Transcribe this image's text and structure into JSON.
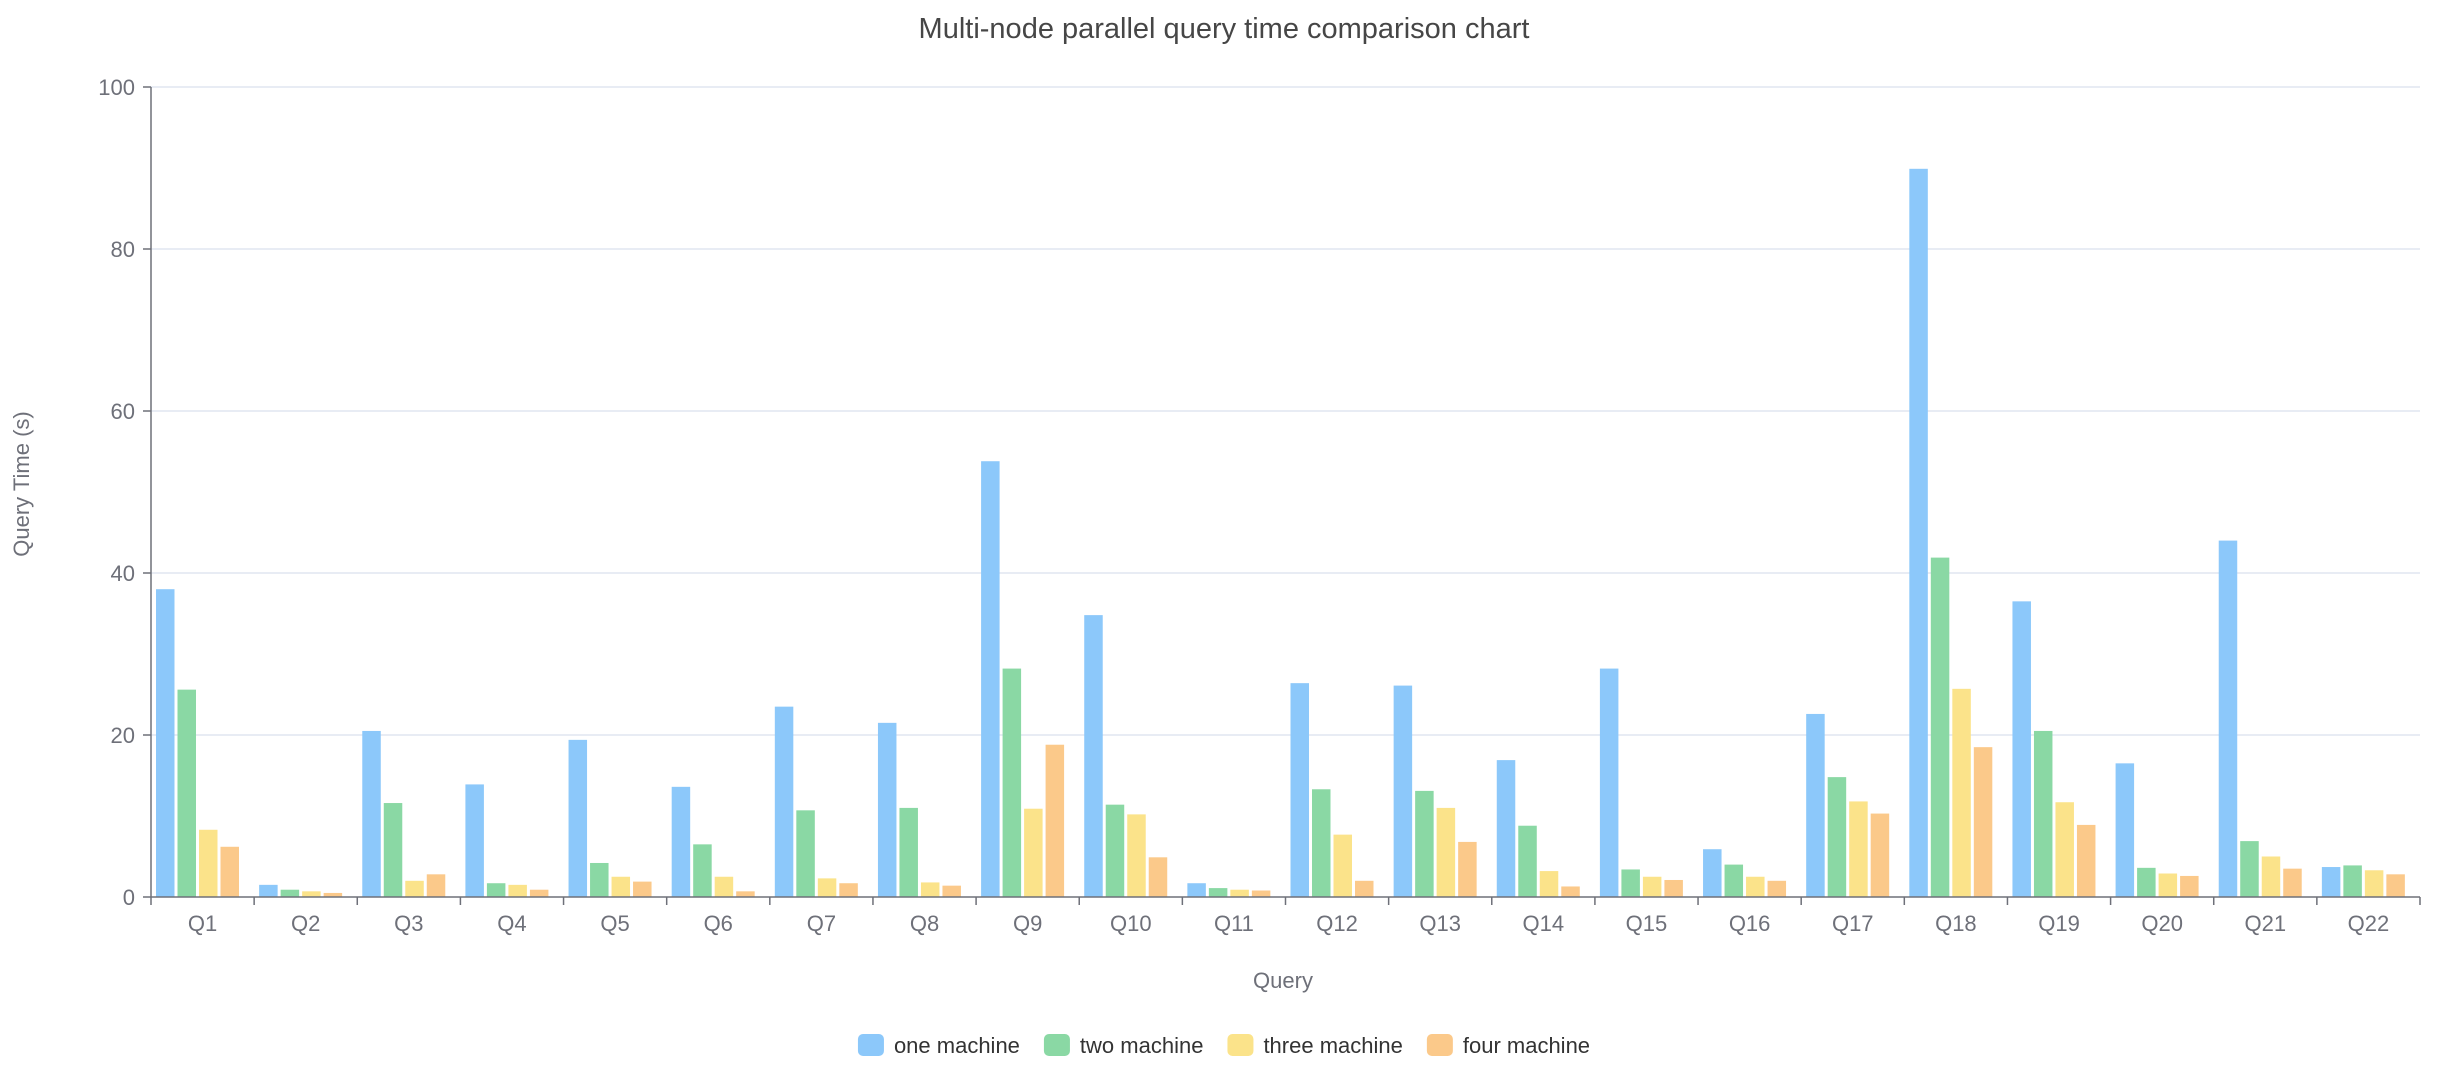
{
  "chart_data": {
    "type": "bar",
    "title": "Multi-node parallel query time comparison chart",
    "xlabel": "Query",
    "ylabel": "Query Time (s)",
    "ylim": [
      0,
      100
    ],
    "yticks": [
      0,
      20,
      40,
      60,
      80,
      100
    ],
    "grid": true,
    "legend_position": "bottom-center",
    "categories": [
      "Q1",
      "Q2",
      "Q3",
      "Q4",
      "Q5",
      "Q6",
      "Q7",
      "Q8",
      "Q9",
      "Q10",
      "Q11",
      "Q12",
      "Q13",
      "Q14",
      "Q15",
      "Q16",
      "Q17",
      "Q18",
      "Q19",
      "Q20",
      "Q21",
      "Q22"
    ],
    "series": [
      {
        "name": "one machine",
        "color": "#8cc8fa",
        "values": [
          38.0,
          1.5,
          20.5,
          13.9,
          19.4,
          13.6,
          23.5,
          21.5,
          53.8,
          34.8,
          1.7,
          26.4,
          26.1,
          16.9,
          28.2,
          5.9,
          22.6,
          89.9,
          36.5,
          16.5,
          44.0,
          3.7
        ]
      },
      {
        "name": "two machine",
        "color": "#8ad8a4",
        "values": [
          25.6,
          0.9,
          11.6,
          1.7,
          4.2,
          6.5,
          10.7,
          11.0,
          28.2,
          11.4,
          1.1,
          13.3,
          13.1,
          8.8,
          3.4,
          4.0,
          14.8,
          41.9,
          20.5,
          3.6,
          6.9,
          3.9
        ]
      },
      {
        "name": "three machine",
        "color": "#fbe38a",
        "values": [
          8.3,
          0.7,
          2.0,
          1.5,
          2.5,
          2.5,
          2.3,
          1.8,
          10.9,
          10.2,
          0.9,
          7.7,
          11.0,
          3.2,
          2.5,
          2.5,
          11.8,
          25.7,
          11.7,
          2.9,
          5.0,
          3.3
        ]
      },
      {
        "name": "four machine",
        "color": "#fbc98a",
        "values": [
          6.2,
          0.5,
          2.8,
          0.9,
          1.9,
          0.7,
          1.7,
          1.4,
          18.8,
          4.9,
          0.8,
          2.0,
          6.8,
          1.3,
          2.1,
          2.0,
          10.3,
          18.5,
          8.9,
          2.6,
          3.5,
          2.8
        ]
      }
    ]
  }
}
